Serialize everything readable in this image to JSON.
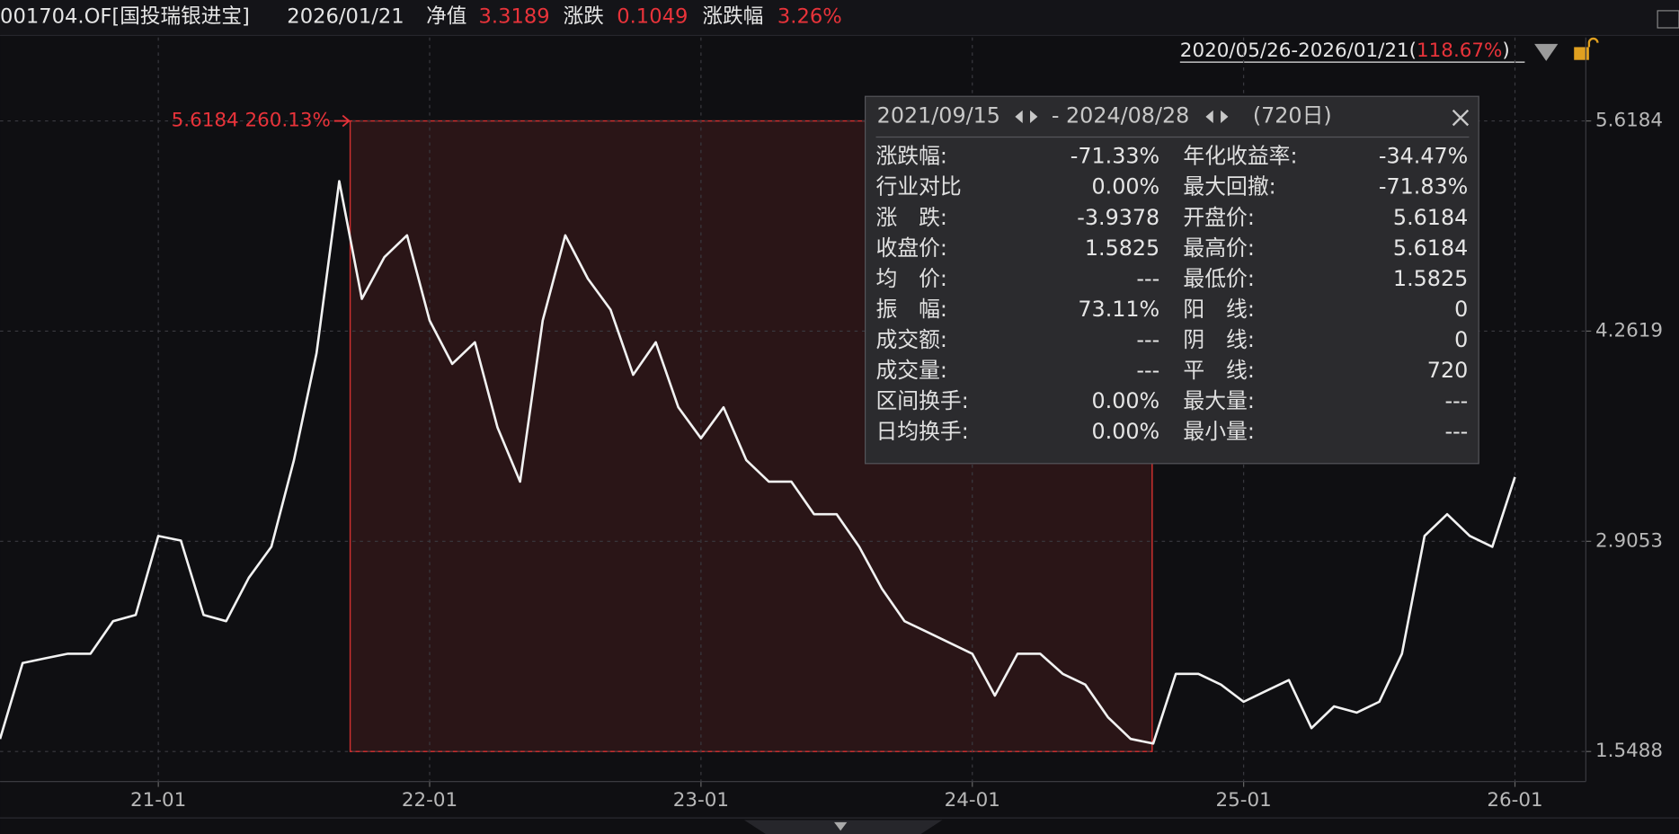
{
  "header": {
    "code": "001704.OF[国投瑞银进宝]",
    "date": "2026/01/21",
    "nav_label": "净值",
    "nav": "3.3189",
    "change_label": "涨跌",
    "change": "0.1049",
    "pct_label": "涨跌幅",
    "pct": "3.26%",
    "range": "2020/05/26-2026/01/21(",
    "range_pct": "118.67%",
    "range_close": ")"
  },
  "chart_data": {
    "type": "line",
    "annotation": "5.6184 260.13%",
    "categories": [
      null,
      null,
      null,
      null,
      null,
      null,
      null,
      "21-01",
      null,
      null,
      null,
      null,
      null,
      null,
      null,
      null,
      null,
      null,
      null,
      "22-01",
      null,
      null,
      null,
      null,
      null,
      null,
      null,
      null,
      null,
      null,
      null,
      "23-01",
      null,
      null,
      null,
      null,
      null,
      null,
      null,
      null,
      null,
      null,
      null,
      "24-01",
      null,
      null,
      null,
      null,
      null,
      null,
      null,
      null,
      null,
      null,
      null,
      "25-01",
      null,
      null,
      null,
      null,
      null,
      null,
      null,
      null,
      null,
      null,
      null,
      "26-01"
    ],
    "series": [
      {
        "name": "净值",
        "color": "#f2f2f2",
        "values": [
          1.63,
          2.12,
          2.15,
          2.18,
          2.18,
          2.39,
          2.43,
          2.94,
          2.91,
          2.43,
          2.39,
          2.67,
          2.87,
          3.43,
          4.12,
          5.23,
          4.47,
          4.74,
          4.88,
          4.33,
          4.05,
          4.19,
          3.64,
          3.29,
          4.33,
          4.88,
          4.6,
          4.4,
          3.98,
          4.19,
          3.77,
          3.57,
          3.77,
          3.43,
          3.29,
          3.29,
          3.08,
          3.08,
          2.87,
          2.6,
          2.39,
          2.32,
          2.25,
          2.18,
          1.91,
          2.18,
          2.18,
          2.05,
          1.98,
          1.77,
          1.63,
          1.6,
          2.05,
          2.05,
          1.98,
          1.87,
          1.94,
          2.01,
          1.7,
          1.84,
          1.8,
          1.87,
          2.18,
          2.94,
          3.08,
          2.94,
          2.87,
          3.32
        ]
      }
    ],
    "ylim": [
      1.355,
      6.157
    ],
    "yticks": [
      1.5488,
      2.9053,
      4.2619,
      5.6184
    ],
    "grid": true
  },
  "panel": {
    "start": "2021/09/15",
    "end": "- 2024/08/28",
    "days": "(720日)",
    "rows": [
      [
        {
          "label": "涨跌幅:",
          "value": "-71.33%",
          "color": "#2fbf5a"
        },
        {
          "label": "年化收益率:",
          "value": "-34.47%",
          "color": "#2fbf5a"
        }
      ],
      [
        {
          "label": "行业对比",
          "value": "0.00%",
          "color": "#f0f0f0"
        },
        {
          "label": "最大回撤:",
          "value": "-71.83%",
          "color": "#2fbf5a"
        }
      ],
      [
        {
          "label": "涨　跌:",
          "value": "-3.9378",
          "color": "#2fbf5a"
        },
        {
          "label": "开盘价:",
          "value": "5.6184",
          "color": "#2fbf5a"
        }
      ],
      [
        {
          "label": "收盘价:",
          "value": "1.5825",
          "color": "#2fbf5a"
        },
        {
          "label": "最高价:",
          "value": "5.6184",
          "color": "#2fbf5a"
        }
      ],
      [
        {
          "label": "均　价:",
          "value": "---",
          "color": "#2fbf5a"
        },
        {
          "label": "最低价:",
          "value": "1.5825",
          "color": "#2fbf5a"
        }
      ],
      [
        {
          "label": "振　幅:",
          "value": "73.11%",
          "color": "#e8333a"
        },
        {
          "label": "阳　线:",
          "value": "0",
          "color": "#e8333a"
        }
      ],
      [
        {
          "label": "成交额:",
          "value": "---",
          "color": "#f0f0f0"
        },
        {
          "label": "阴　线:",
          "value": "0",
          "color": "#2fbf5a"
        }
      ],
      [
        {
          "label": "成交量:",
          "value": "---",
          "color": "#f0f0f0"
        },
        {
          "label": "平　线:",
          "value": "720",
          "color": "#f0f0f0"
        }
      ],
      [
        {
          "label": "区间换手:",
          "value": "0.00%",
          "color": "#f0f0f0"
        },
        {
          "label": "最大量:",
          "value": "---",
          "color": "#f0f0f0"
        }
      ],
      [
        {
          "label": "日均换手:",
          "value": "0.00%",
          "color": "#f0f0f0"
        },
        {
          "label": "最小量:",
          "value": "---",
          "color": "#f0f0f0"
        }
      ]
    ]
  }
}
